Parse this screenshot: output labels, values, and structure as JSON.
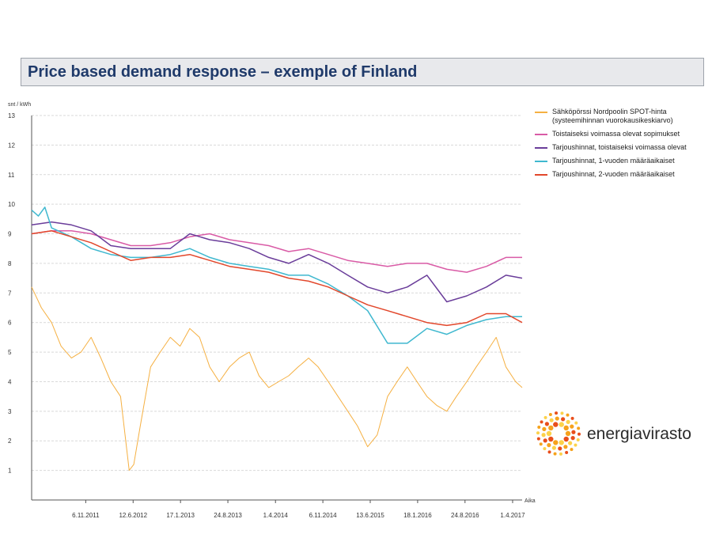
{
  "header": {
    "title": "Price based demand response – exemple of Finland"
  },
  "logo": {
    "text": "energiavirasto",
    "colors": [
      "#f6a21c",
      "#e94e1b",
      "#fcd24a"
    ]
  },
  "chart_data": {
    "type": "line",
    "title": "",
    "ylabel": "snt / kWh",
    "xlabel": "Aika",
    "ylim": [
      0,
      13
    ],
    "yticks": [
      1,
      2,
      3,
      4,
      5,
      6,
      7,
      8,
      9,
      10,
      11,
      12,
      13
    ],
    "xlim": [
      "2011-03-01",
      "2017-05-15"
    ],
    "xticks": [
      "6.11.2011",
      "12.6.2012",
      "17.1.2013",
      "24.8.2013",
      "1.4.2014",
      "6.11.2014",
      "13.6.2015",
      "18.1.2016",
      "24.8.2016",
      "1.4.2017"
    ],
    "grid": true,
    "legend_position": "right",
    "series": [
      {
        "name": "Sähköpörssi Nordpoolin SPOT-hinta (systeemihinnan vuorokausikeskiarvo)",
        "color": "#f5b042",
        "x": [
          "2011-03-01",
          "2011-04-15",
          "2011-06-01",
          "2011-07-15",
          "2011-09-01",
          "2011-10-15",
          "2011-12-01",
          "2012-01-15",
          "2012-03-01",
          "2012-04-15",
          "2012-05-25",
          "2012-06-15",
          "2012-07-15",
          "2012-09-01",
          "2012-10-15",
          "2012-12-01",
          "2013-01-15",
          "2013-03-01",
          "2013-04-15",
          "2013-06-01",
          "2013-07-15",
          "2013-09-01",
          "2013-10-15",
          "2013-12-01",
          "2014-01-15",
          "2014-03-01",
          "2014-04-15",
          "2014-06-01",
          "2014-07-15",
          "2014-09-01",
          "2014-10-15",
          "2014-12-01",
          "2015-01-15",
          "2015-03-01",
          "2015-04-15",
          "2015-06-01",
          "2015-07-15",
          "2015-09-01",
          "2015-10-15",
          "2015-12-01",
          "2016-01-15",
          "2016-03-01",
          "2016-04-15",
          "2016-06-01",
          "2016-07-15",
          "2016-09-01",
          "2016-10-15",
          "2016-12-01",
          "2017-01-15",
          "2017-03-01",
          "2017-04-15",
          "2017-05-15"
        ],
        "values": [
          7.2,
          6.5,
          6.0,
          5.2,
          4.8,
          5.0,
          5.5,
          4.8,
          4.0,
          3.5,
          1.0,
          1.2,
          2.5,
          4.5,
          5.0,
          5.5,
          5.2,
          5.8,
          5.5,
          4.5,
          4.0,
          4.5,
          4.8,
          5.0,
          4.2,
          3.8,
          4.0,
          4.2,
          4.5,
          4.8,
          4.5,
          4.0,
          3.5,
          3.0,
          2.5,
          1.8,
          2.2,
          3.5,
          4.0,
          4.5,
          4.0,
          3.5,
          3.2,
          3.0,
          3.5,
          4.0,
          4.5,
          5.0,
          5.5,
          4.5,
          4.0,
          3.8
        ]
      },
      {
        "name": "Toistaiseksi voimassa olevat sopimukset",
        "color": "#d95ba6",
        "x": [
          "2011-03-01",
          "2011-06-01",
          "2011-09-01",
          "2011-12-01",
          "2012-03-01",
          "2012-06-01",
          "2012-09-01",
          "2012-12-01",
          "2013-03-01",
          "2013-06-01",
          "2013-09-01",
          "2013-12-01",
          "2014-03-01",
          "2014-06-01",
          "2014-09-01",
          "2014-12-01",
          "2015-03-01",
          "2015-06-01",
          "2015-09-01",
          "2015-12-01",
          "2016-03-01",
          "2016-06-01",
          "2016-09-01",
          "2016-12-01",
          "2017-03-01",
          "2017-05-15"
        ],
        "values": [
          9.0,
          9.1,
          9.1,
          9.0,
          8.8,
          8.6,
          8.6,
          8.7,
          8.9,
          9.0,
          8.8,
          8.7,
          8.6,
          8.4,
          8.5,
          8.3,
          8.1,
          8.0,
          7.9,
          8.0,
          8.0,
          7.8,
          7.7,
          7.9,
          8.2,
          8.2
        ]
      },
      {
        "name": "Tarjoushinnat, toistaiseksi voimassa olevat",
        "color": "#6a3d9a",
        "x": [
          "2011-03-01",
          "2011-06-01",
          "2011-09-01",
          "2011-12-01",
          "2012-03-01",
          "2012-06-01",
          "2012-09-01",
          "2012-12-01",
          "2013-03-01",
          "2013-06-01",
          "2013-09-01",
          "2013-12-01",
          "2014-03-01",
          "2014-06-01",
          "2014-09-01",
          "2014-12-01",
          "2015-03-01",
          "2015-06-01",
          "2015-09-01",
          "2015-12-01",
          "2016-03-01",
          "2016-06-01",
          "2016-09-01",
          "2016-12-01",
          "2017-03-01",
          "2017-05-15"
        ],
        "values": [
          9.3,
          9.4,
          9.3,
          9.1,
          8.6,
          8.5,
          8.5,
          8.5,
          9.0,
          8.8,
          8.7,
          8.5,
          8.2,
          8.0,
          8.3,
          8.0,
          7.6,
          7.2,
          7.0,
          7.2,
          7.6,
          6.7,
          6.9,
          7.2,
          7.6,
          7.5
        ]
      },
      {
        "name": "Tarjoushinnat, 1-vuoden määräaikaiset",
        "color": "#3fb8cf",
        "x": [
          "2011-03-01",
          "2011-04-01",
          "2011-05-01",
          "2011-06-01",
          "2011-09-01",
          "2011-12-01",
          "2012-03-01",
          "2012-06-01",
          "2012-09-01",
          "2012-12-01",
          "2013-03-01",
          "2013-06-01",
          "2013-09-01",
          "2013-12-01",
          "2014-03-01",
          "2014-06-01",
          "2014-09-01",
          "2014-12-01",
          "2015-03-01",
          "2015-06-01",
          "2015-09-01",
          "2015-12-01",
          "2016-03-01",
          "2016-06-01",
          "2016-09-01",
          "2016-12-01",
          "2017-03-01",
          "2017-05-15"
        ],
        "values": [
          9.8,
          9.6,
          9.9,
          9.2,
          8.9,
          8.5,
          8.3,
          8.2,
          8.2,
          8.3,
          8.5,
          8.2,
          8.0,
          7.9,
          7.8,
          7.6,
          7.6,
          7.3,
          6.9,
          6.4,
          5.3,
          5.3,
          5.8,
          5.6,
          5.9,
          6.1,
          6.2,
          6.2
        ]
      },
      {
        "name": "Tarjoushinnat, 2-vuoden määräaikaiset",
        "color": "#e2472b",
        "x": [
          "2011-03-01",
          "2011-06-01",
          "2011-09-01",
          "2011-12-01",
          "2012-03-01",
          "2012-06-01",
          "2012-09-01",
          "2012-12-01",
          "2013-03-01",
          "2013-06-01",
          "2013-09-01",
          "2013-12-01",
          "2014-03-01",
          "2014-06-01",
          "2014-09-01",
          "2014-12-01",
          "2015-03-01",
          "2015-06-01",
          "2015-09-01",
          "2015-12-01",
          "2016-03-01",
          "2016-06-01",
          "2016-09-01",
          "2016-12-01",
          "2017-03-01",
          "2017-05-15"
        ],
        "values": [
          9.0,
          9.1,
          8.9,
          8.7,
          8.4,
          8.1,
          8.2,
          8.2,
          8.3,
          8.1,
          7.9,
          7.8,
          7.7,
          7.5,
          7.4,
          7.2,
          6.9,
          6.6,
          6.4,
          6.2,
          6.0,
          5.9,
          6.0,
          6.3,
          6.3,
          6.0
        ]
      }
    ]
  }
}
